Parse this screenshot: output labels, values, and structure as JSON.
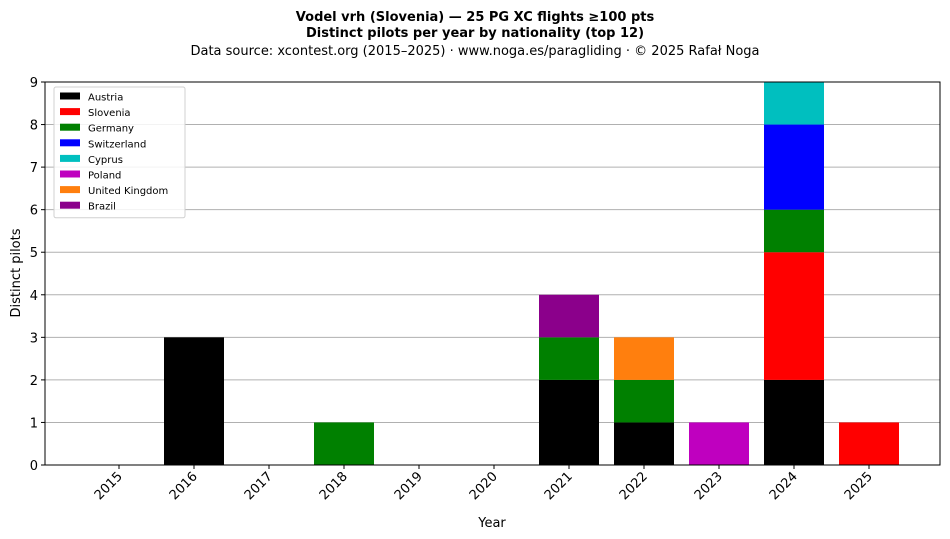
{
  "chart_data": {
    "type": "bar",
    "stacked": true,
    "title": "Vodel vrh (Slovenia)  —  25 PG XC flights ≥100 pts",
    "subtitle": "Distinct pilots per year by nationality (top 12)",
    "source_line": "Data source: xcontest.org (2015–2025)  ·  www.noga.es/paragliding  ·  © 2025 Rafał Noga",
    "xlabel": "Year",
    "ylabel": "Distinct pilots",
    "ylim": [
      0,
      9
    ],
    "yticks": [
      0,
      1,
      2,
      3,
      4,
      5,
      6,
      7,
      8,
      9
    ],
    "grid": "horizontal",
    "legend_position": "top-left",
    "categories": [
      "2015",
      "2016",
      "2017",
      "2018",
      "2019",
      "2020",
      "2021",
      "2022",
      "2023",
      "2024",
      "2025"
    ],
    "series": [
      {
        "name": "Austria",
        "color": "#000000",
        "values": [
          0,
          3,
          0,
          0,
          0,
          0,
          2,
          1,
          0,
          2,
          0
        ]
      },
      {
        "name": "Slovenia",
        "color": "#ff0000",
        "values": [
          0,
          0,
          0,
          0,
          0,
          0,
          0,
          0,
          0,
          3,
          1
        ]
      },
      {
        "name": "Germany",
        "color": "#008000",
        "values": [
          0,
          0,
          0,
          1,
          0,
          0,
          1,
          1,
          0,
          1,
          0
        ]
      },
      {
        "name": "Switzerland",
        "color": "#0000ff",
        "values": [
          0,
          0,
          0,
          0,
          0,
          0,
          0,
          0,
          0,
          2,
          0
        ]
      },
      {
        "name": "Cyprus",
        "color": "#00bfbf",
        "values": [
          0,
          0,
          0,
          0,
          0,
          0,
          0,
          0,
          0,
          1,
          0
        ]
      },
      {
        "name": "Poland",
        "color": "#bf00bf",
        "values": [
          0,
          0,
          0,
          0,
          0,
          0,
          0,
          0,
          1,
          0,
          0
        ]
      },
      {
        "name": "United Kingdom",
        "color": "#ff7f0e",
        "values": [
          0,
          0,
          0,
          0,
          0,
          0,
          0,
          1,
          0,
          0,
          0
        ]
      },
      {
        "name": "Brazil",
        "color": "#8b008b",
        "values": [
          0,
          0,
          0,
          0,
          0,
          0,
          1,
          0,
          0,
          0,
          0
        ]
      }
    ]
  }
}
